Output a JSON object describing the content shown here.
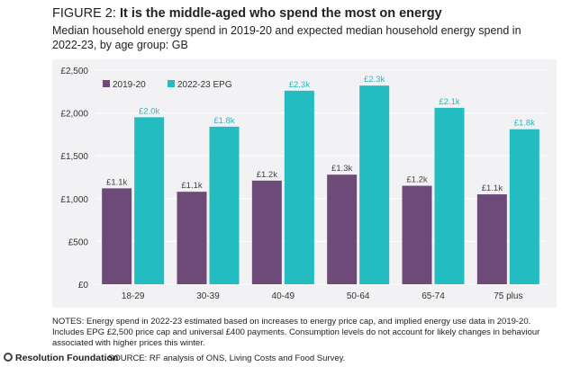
{
  "figure": {
    "label": "FIGURE 2: ",
    "headline": "It is the middle-aged who spend the most on energy",
    "subtitle": "Median household energy spend in 2019-20 and expected median household energy spend in 2022-23, by age group: GB"
  },
  "colors": {
    "series_2019": "#6d4a78",
    "series_2022": "#23bcc1",
    "panel_bg": "#f2f2f4",
    "grid": "#ffffff"
  },
  "chart_data": {
    "type": "bar",
    "categories": [
      "18-29",
      "30-39",
      "40-49",
      "50-64",
      "65-74",
      "75 plus"
    ],
    "series": [
      {
        "name": "2019-20",
        "values": [
          1120,
          1080,
          1210,
          1280,
          1150,
          1050
        ],
        "labels": [
          "£1.1k",
          "£1.1k",
          "£1.2k",
          "£1.3k",
          "£1.2k",
          "£1.1k"
        ]
      },
      {
        "name": "2022-23 EPG",
        "values": [
          1950,
          1840,
          2260,
          2320,
          2060,
          1810
        ],
        "labels": [
          "£2.0k",
          "£1.8k",
          "£2.3k",
          "£2.3k",
          "£2.1k",
          "£1.8k"
        ]
      }
    ],
    "yticks": [
      "£0",
      "£500",
      "£1,000",
      "£1,500",
      "£2,000",
      "£2,500"
    ],
    "ytick_values": [
      0,
      500,
      1000,
      1500,
      2000,
      2500
    ],
    "ylim": [
      0,
      2500
    ],
    "xlabel": "",
    "ylabel": "",
    "grid": true,
    "legend_position": "top-left"
  },
  "notes": {
    "line1": "NOTES: Energy spend in 2022-23 estimated based on increases to energy price cap, and implied energy use data in 2019-20. Includes EPG £2,500 price cap and universal £400 payments. Consumption levels do not account for likely changes in behaviour associated with higher prices this winter.",
    "source_label": "SOURCE: RF analysis of ONS, Living Costs and Food Survey."
  },
  "footer": {
    "logo_text": "Resolution Foundation"
  }
}
